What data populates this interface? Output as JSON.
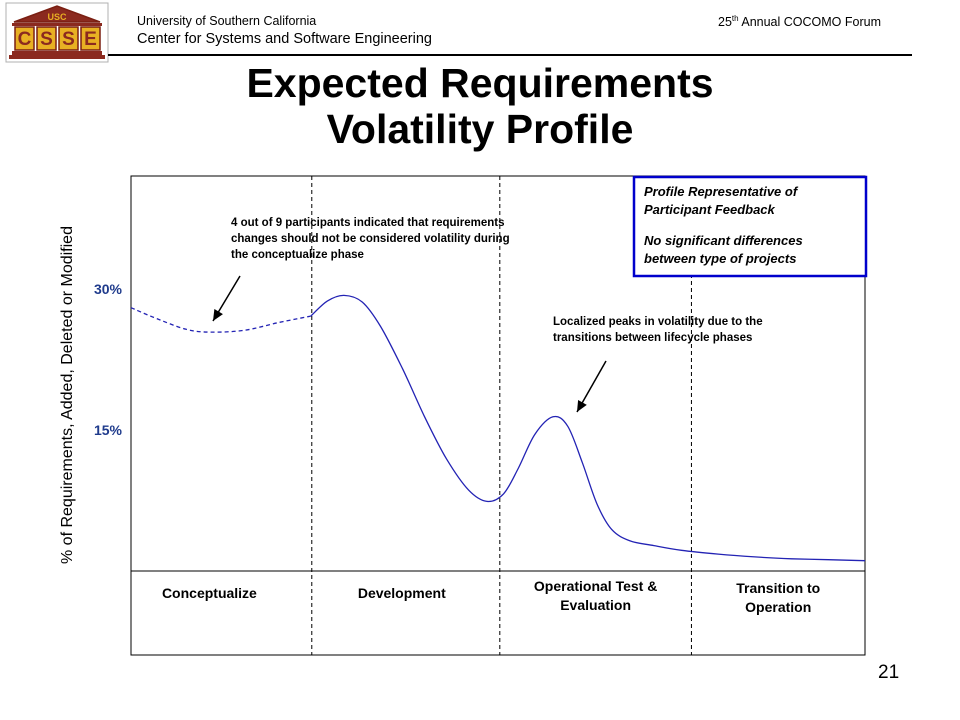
{
  "header": {
    "org_line1": "University of Southern California",
    "org_line2": "Center for Systems and Software Engineering",
    "forum_ordinal": "25",
    "forum_suffix": "th",
    "forum_rest": " Annual COCOMO Forum",
    "logo_top": "USC",
    "logo_letters": [
      "C",
      "S",
      "S",
      "E"
    ],
    "logo_colors": {
      "brown": "#8b2a1f",
      "gold": "#e8b023",
      "outline": "#7a1f12"
    }
  },
  "title": {
    "line1": "Expected Requirements",
    "line2": "Volatility Profile"
  },
  "chart_data": {
    "type": "line",
    "ylabel": "% of Requirements, Added, Deleted or Modified",
    "ytick_labels": [
      "30%",
      "15%"
    ],
    "yticks": [
      30,
      15
    ],
    "ylim": [
      0,
      42
    ],
    "xlim": [
      0,
      4
    ],
    "categories": [
      "Conceptualize",
      "Development",
      "Operational Test & Evaluation",
      "Transition to Operation"
    ],
    "series": [
      {
        "style": "dashed",
        "x": [
          0,
          0.12,
          0.3,
          0.44,
          0.62,
          0.8,
          0.98
        ],
        "y": [
          28,
          27,
          25.7,
          25.4,
          25.6,
          26.4,
          27.1
        ]
      },
      {
        "style": "solid",
        "x": [
          0.98,
          1.07,
          1.16,
          1.26,
          1.36,
          1.48,
          1.6,
          1.72,
          1.84,
          1.94,
          2.03,
          2.11,
          2.2,
          2.3,
          2.38,
          2.46,
          2.54,
          2.62,
          2.72,
          2.85,
          3.0,
          3.2,
          3.4,
          3.6,
          3.8,
          4.0
        ],
        "y": [
          27.1,
          28.7,
          29.3,
          28.6,
          26,
          21.5,
          16.4,
          11.9,
          8.6,
          7.4,
          8.2,
          10.9,
          14.5,
          16.4,
          15.4,
          11.5,
          7.1,
          4.4,
          3.2,
          2.7,
          2.2,
          1.8,
          1.5,
          1.3,
          1.2,
          1.1
        ]
      }
    ],
    "colors": {
      "line": "#2323b4",
      "ytick": "#1f3b8c",
      "info_box_border": "#0000cc"
    },
    "annotations": [
      {
        "text": "4 out of 9 participants indicated that requirements changes should not be considered volatility during the conceptualize phase",
        "lines": [
          "4 out of 9 participants indicated that requirements",
          "changes should not be considered volatility during",
          "the conceptualize phase"
        ]
      },
      {
        "text": "Localized peaks in volatility due to the transitions between lifecycle phases",
        "lines": [
          "Localized peaks in volatility due to the",
          "transitions between lifecycle phases"
        ]
      }
    ],
    "info_box": {
      "lines1": [
        "Profile Representative of",
        "Participant Feedback"
      ],
      "lines2": [
        "No significant differences",
        "between type of projects"
      ]
    }
  },
  "page_number": "21"
}
